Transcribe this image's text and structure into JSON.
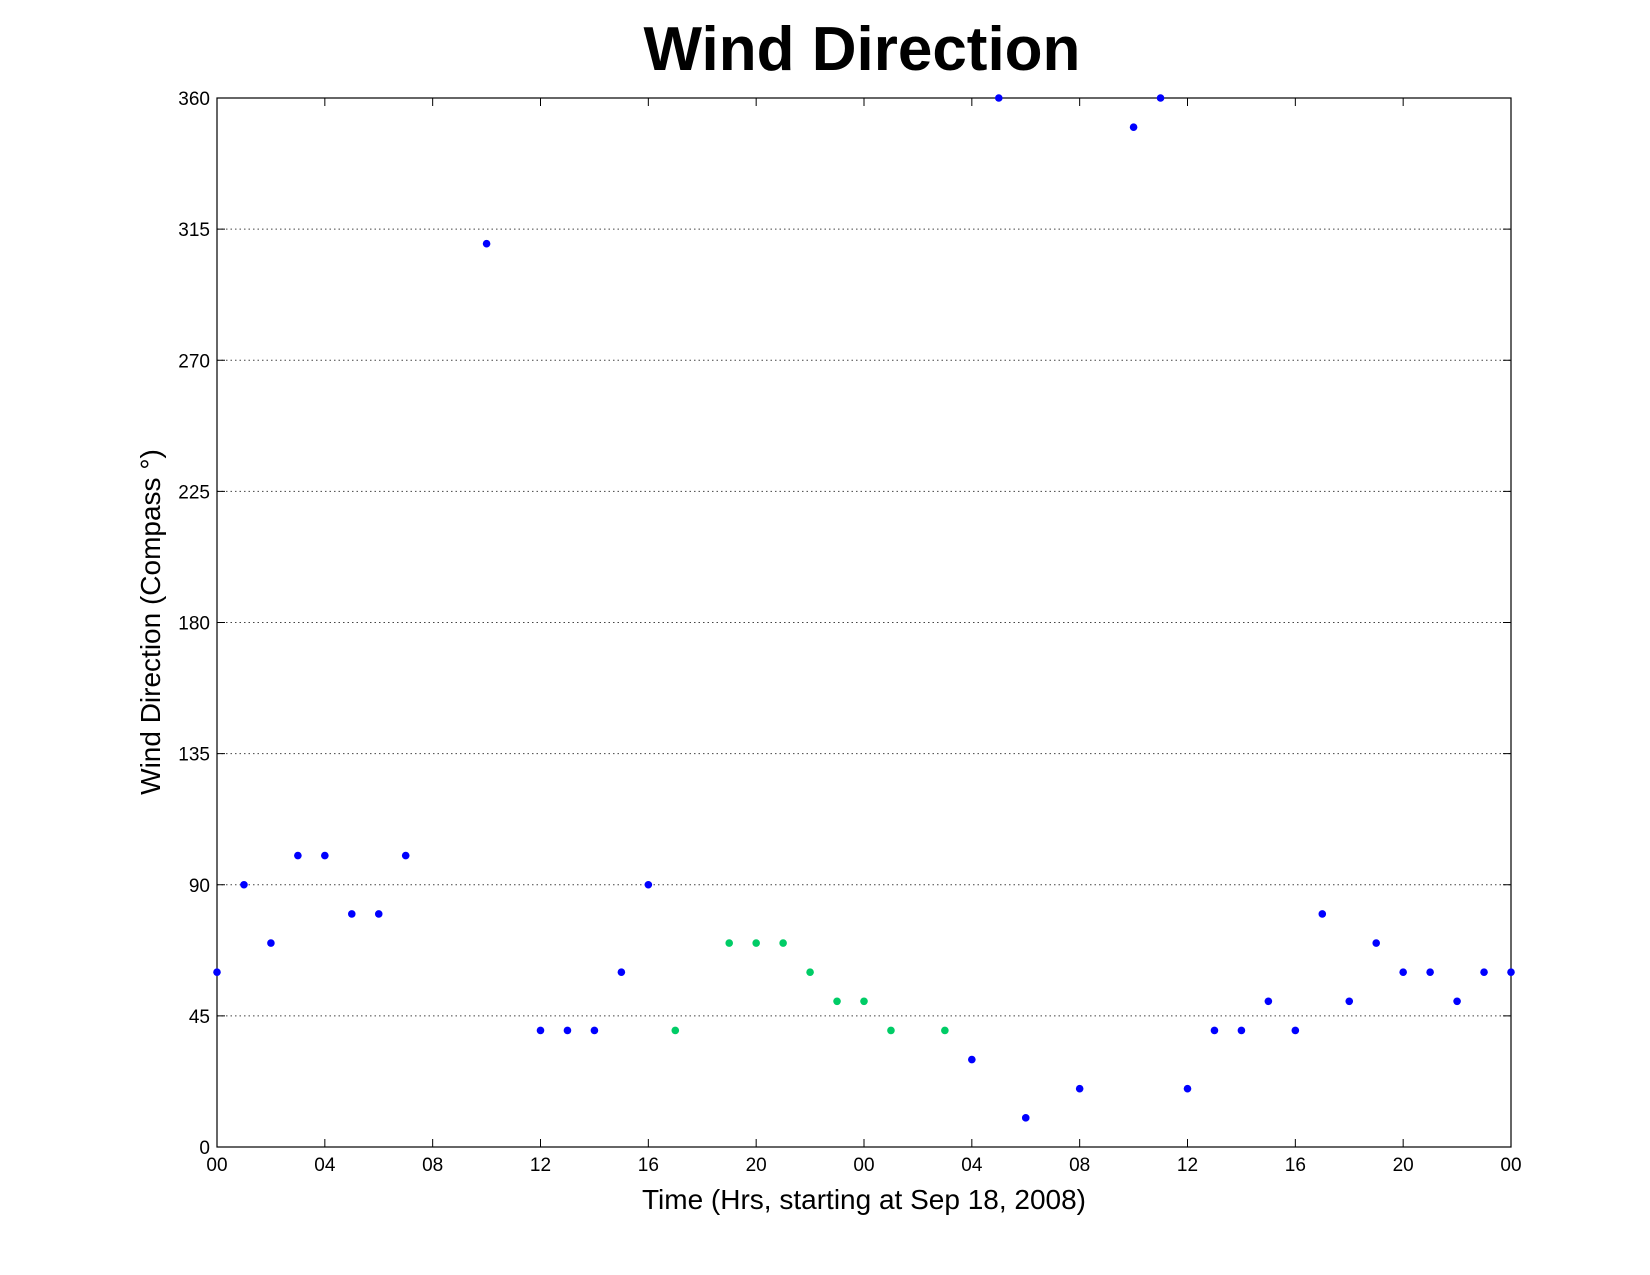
{
  "chart_data": {
    "type": "scatter",
    "title": "Wind Direction",
    "xlabel": "Time (Hrs, starting at Sep 18, 2008)",
    "ylabel": "Wind Direction (Compass  °)",
    "xlim": [
      0,
      48
    ],
    "ylim": [
      0,
      360
    ],
    "x_ticks": [
      {
        "value": 0,
        "label": "00"
      },
      {
        "value": 4,
        "label": "04"
      },
      {
        "value": 8,
        "label": "08"
      },
      {
        "value": 12,
        "label": "12"
      },
      {
        "value": 16,
        "label": "16"
      },
      {
        "value": 20,
        "label": "20"
      },
      {
        "value": 24,
        "label": "00"
      },
      {
        "value": 28,
        "label": "04"
      },
      {
        "value": 32,
        "label": "08"
      },
      {
        "value": 36,
        "label": "12"
      },
      {
        "value": 40,
        "label": "16"
      },
      {
        "value": 44,
        "label": "20"
      },
      {
        "value": 48,
        "label": "00"
      }
    ],
    "y_ticks": [
      {
        "value": 0,
        "label": "0"
      },
      {
        "value": 45,
        "label": "45"
      },
      {
        "value": 90,
        "label": "90"
      },
      {
        "value": 135,
        "label": "135"
      },
      {
        "value": 180,
        "label": "180"
      },
      {
        "value": 225,
        "label": "225"
      },
      {
        "value": 270,
        "label": "270"
      },
      {
        "value": 315,
        "label": "315"
      },
      {
        "value": 360,
        "label": "360"
      }
    ],
    "grid": "horizontal dotted",
    "series": [
      {
        "color": "#0000ff",
        "points": [
          [
            0,
            60
          ],
          [
            1,
            90
          ],
          [
            2,
            70
          ],
          [
            3,
            100
          ],
          [
            4,
            100
          ],
          [
            5,
            80
          ],
          [
            6,
            80
          ],
          [
            7,
            100
          ],
          [
            10,
            310
          ],
          [
            12,
            40
          ],
          [
            13,
            40
          ],
          [
            14,
            40
          ],
          [
            15,
            60
          ],
          [
            16,
            90
          ],
          [
            28,
            30
          ],
          [
            29,
            360
          ],
          [
            30,
            10
          ],
          [
            32,
            20
          ],
          [
            34,
            350
          ],
          [
            35,
            360
          ],
          [
            36,
            20
          ],
          [
            37,
            40
          ],
          [
            38,
            40
          ],
          [
            39,
            50
          ],
          [
            40,
            40
          ],
          [
            41,
            80
          ],
          [
            42,
            50
          ],
          [
            43,
            70
          ],
          [
            44,
            60
          ],
          [
            45,
            60
          ],
          [
            46,
            50
          ],
          [
            47,
            60
          ],
          [
            48,
            60
          ]
        ]
      },
      {
        "color": "#00cc66",
        "points": [
          [
            17,
            40
          ],
          [
            19,
            70
          ],
          [
            20,
            70
          ],
          [
            21,
            70
          ],
          [
            22,
            60
          ],
          [
            23,
            50
          ],
          [
            24,
            50
          ],
          [
            25,
            40
          ],
          [
            27,
            40
          ]
        ]
      }
    ]
  }
}
